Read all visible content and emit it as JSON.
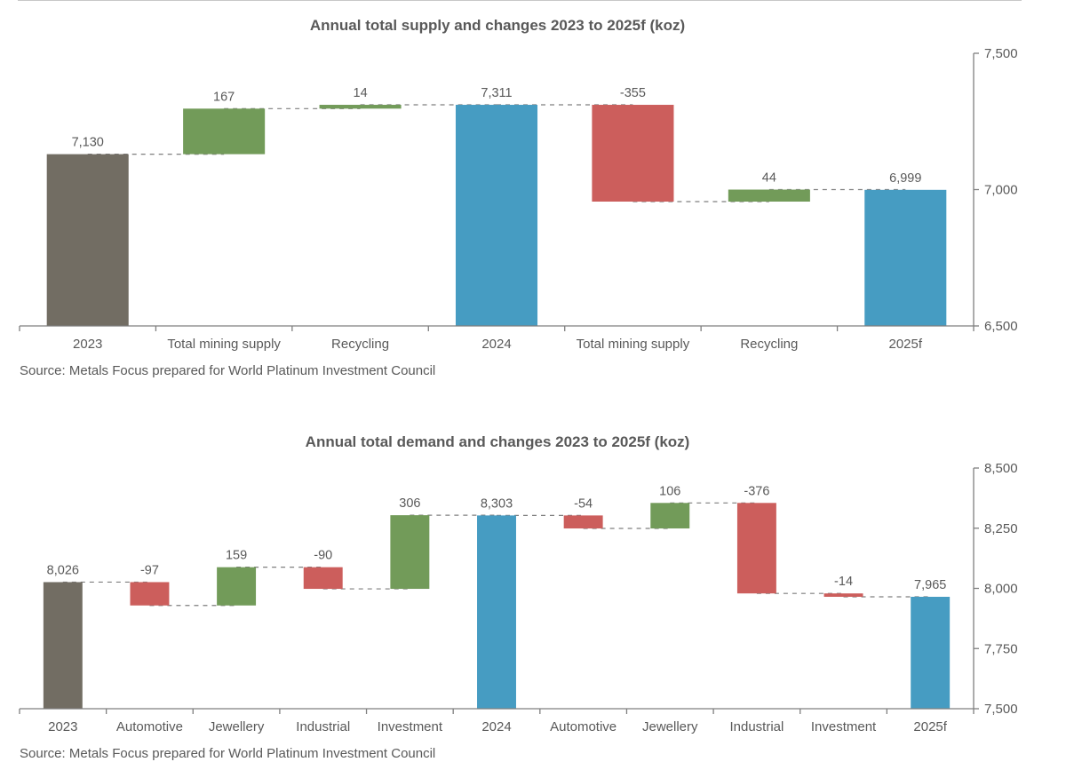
{
  "colors": {
    "start": "#726d63",
    "increase": "#729b59",
    "decrease": "#cc5e5c",
    "total": "#469cc2"
  },
  "chart_data": [
    {
      "type": "bar",
      "subtype": "waterfall",
      "title": "Annual total supply and changes 2023 to 2025f (koz)",
      "source": "Source: Metals Focus prepared for World Platinum Investment Council",
      "xlabel": "",
      "ylabel": "",
      "ylim": [
        6500,
        7500
      ],
      "yticks": [
        6500,
        7000,
        7500
      ],
      "ytick_labels": [
        "6,500",
        "7,000",
        "7,500"
      ],
      "y_axis_side": "right",
      "grid": false,
      "categories": [
        "2023",
        "Total mining supply",
        "Recycling",
        "2024",
        "Total mining supply",
        "Recycling",
        "2025f"
      ],
      "bar_kinds": [
        "start",
        "delta",
        "delta",
        "total",
        "delta",
        "delta",
        "total"
      ],
      "values": [
        7130,
        167,
        14,
        7311,
        -355,
        44,
        6999
      ],
      "data_labels": [
        "7,130",
        "167",
        "14",
        "7,311",
        "-355",
        "44",
        "6,999"
      ]
    },
    {
      "type": "bar",
      "subtype": "waterfall",
      "title": "Annual total demand and changes 2023 to 2025f (koz)",
      "source": "Source: Metals Focus prepared for World Platinum Investment Council",
      "xlabel": "",
      "ylabel": "",
      "ylim": [
        7500,
        8500
      ],
      "yticks": [
        7500,
        7750,
        8000,
        8250,
        8500
      ],
      "ytick_labels": [
        "7,500",
        "7,750",
        "8,000",
        "8,250",
        "8,500"
      ],
      "y_axis_side": "right",
      "grid": false,
      "categories": [
        "2023",
        "Automotive",
        "Jewellery",
        "Industrial",
        "Investment",
        "2024",
        "Automotive",
        "Jewellery",
        "Industrial",
        "Investment",
        "2025f"
      ],
      "bar_kinds": [
        "start",
        "delta",
        "delta",
        "delta",
        "delta",
        "total",
        "delta",
        "delta",
        "delta",
        "delta",
        "total"
      ],
      "values": [
        8026,
        -97,
        159,
        -90,
        306,
        8303,
        -54,
        106,
        -376,
        -14,
        7965
      ],
      "data_labels": [
        "8,026",
        "-97",
        "159",
        "-90",
        "306",
        "8,303",
        "-54",
        "106",
        "-376",
        "-14",
        "7,965"
      ]
    }
  ]
}
